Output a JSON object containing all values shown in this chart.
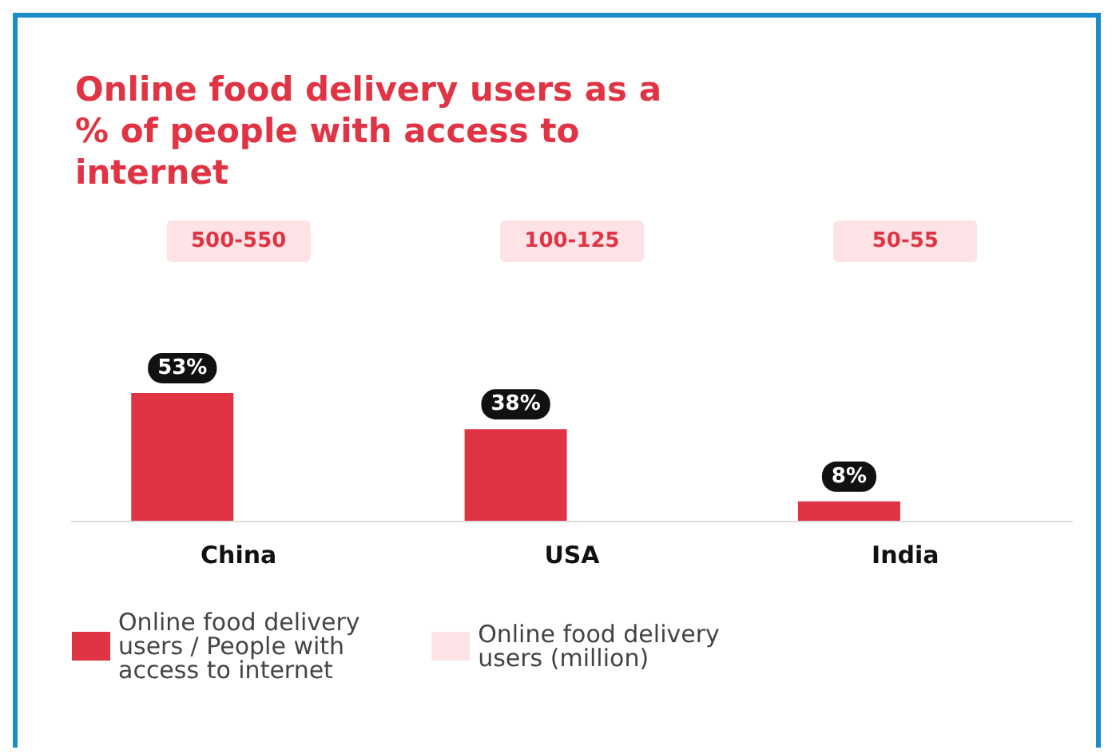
{
  "chart_data": {
    "type": "bar",
    "title": "Online food delivery users as a % of people with access to internet",
    "categories": [
      "China",
      "USA",
      "India"
    ],
    "series": [
      {
        "name": "Online food delivery users / People with access to internet",
        "color": "#e03444",
        "values": [
          53,
          38,
          8
        ],
        "value_labels": [
          "53%",
          "38%",
          "8%"
        ]
      },
      {
        "name": "Online food delivery users (million)",
        "color": "#fde3e6",
        "values": [
          null,
          null,
          null
        ],
        "value_labels": [
          "500-550",
          "100-125",
          "50-55"
        ]
      }
    ],
    "legend": "bottom",
    "grid": false
  }
}
